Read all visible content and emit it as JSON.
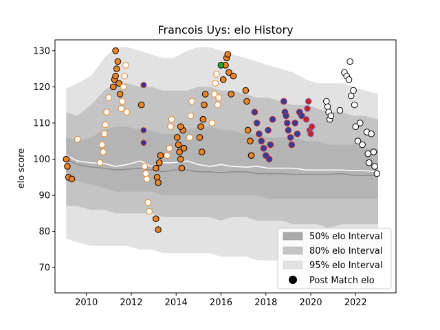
{
  "chart_data": {
    "type": "scatter",
    "title": "Francois Uys: elo History",
    "xlabel": "",
    "ylabel": "elo score",
    "xlim": [
      2008.6,
      2023.8
    ],
    "ylim": [
      63,
      133
    ],
    "xticks": [
      2010,
      2012,
      2014,
      2016,
      2018,
      2020,
      2022
    ],
    "yticks": [
      70,
      80,
      90,
      100,
      110,
      120,
      130
    ],
    "grid": false,
    "legend": {
      "placement": "bottom-right",
      "entries": [
        {
          "label": "50% elo Interval",
          "color": "#a9a9a9"
        },
        {
          "label": "80% elo Interval",
          "color": "#c4c4c4"
        },
        {
          "label": "95% elo Interval",
          "color": "#e2e2e2"
        },
        {
          "label": "Post Match elo",
          "color": "#000000"
        }
      ]
    },
    "bands": {
      "x": [
        2009.1,
        2009.6,
        2010.2,
        2010.8,
        2011.3,
        2011.8,
        2012.4,
        2012.9,
        2013.4,
        2013.9,
        2014.5,
        2015.0,
        2015.5,
        2016.0,
        2016.5,
        2017.1,
        2017.6,
        2018.1,
        2018.7,
        2019.2,
        2019.8,
        2020.3,
        2020.8,
        2021.4,
        2021.9,
        2022.4,
        2023.0
      ],
      "p95_upper": [
        119.5,
        121,
        123,
        128,
        131,
        131,
        130,
        129,
        128,
        128,
        130,
        131,
        131,
        130,
        129,
        128,
        127,
        126,
        125,
        124,
        122,
        121,
        121,
        121,
        120,
        119,
        118
      ],
      "p80_upper": [
        113,
        112,
        115,
        119,
        121,
        121,
        120,
        120,
        119,
        119,
        119,
        120,
        120,
        119,
        119,
        118,
        117,
        117,
        116,
        115,
        115,
        114,
        113,
        113,
        112,
        112,
        111
      ],
      "p50_upper": [
        106,
        105,
        106,
        108,
        109,
        109,
        108,
        108,
        107,
        107,
        108,
        109,
        109,
        108,
        108,
        107,
        107,
        106,
        106,
        106,
        105,
        105,
        104,
        104,
        104,
        103,
        103
      ],
      "p50_lower": [
        94,
        94,
        93,
        92,
        91,
        91,
        91,
        91,
        90,
        90,
        90,
        90,
        90,
        90,
        90,
        90,
        90,
        89,
        89,
        89,
        89,
        89,
        89,
        89,
        89,
        89,
        89
      ],
      "p80_lower": [
        87,
        87,
        86,
        86,
        85,
        85,
        85,
        85,
        84,
        84,
        84,
        84,
        84,
        83,
        84,
        84,
        83,
        83,
        83,
        82,
        82,
        82,
        81,
        82,
        82,
        82,
        82
      ],
      "p95_lower": [
        78,
        77,
        76,
        76,
        76,
        76,
        75,
        75,
        74,
        74,
        74,
        74,
        74,
        73,
        73,
        73,
        72,
        72,
        72,
        71,
        71,
        70,
        70,
        71,
        71,
        71,
        71
      ]
    },
    "mean_lines": {
      "x": [
        2009.1,
        2009.6,
        2010.2,
        2010.8,
        2011.3,
        2011.8,
        2012.4,
        2012.9,
        2013.4,
        2013.9,
        2014.5,
        2015.0,
        2015.5,
        2016.0,
        2016.5,
        2017.1,
        2017.6,
        2018.1,
        2018.7,
        2019.2,
        2019.8,
        2020.3,
        2020.8,
        2021.4,
        2021.9,
        2022.4,
        2023.0
      ],
      "white": [
        101,
        99.5,
        99,
        98.8,
        98,
        98.5,
        99.5,
        98,
        99,
        99,
        99.5,
        98.5,
        98,
        98.5,
        98,
        97.8,
        98,
        97.5,
        97.5,
        97.5,
        97,
        97,
        97,
        97,
        96.8,
        96.8,
        96.5
      ],
      "gray": [
        100,
        98.5,
        97.8,
        97.5,
        97,
        97.2,
        97.5,
        97,
        96.5,
        97,
        97,
        96.5,
        96.5,
        96.2,
        96.5,
        96.5,
        96,
        96,
        96,
        95.8,
        95.8,
        95.8,
        95.8,
        96,
        95.5,
        95.5,
        95.5
      ]
    },
    "series": [
      {
        "fill": "#ee8422",
        "stroke": "#000000",
        "x": [
          2009.1,
          2009.15,
          2009.2,
          2009.35,
          2011.2,
          2011.25,
          2011.3,
          2011.35,
          2011.4,
          2011.45,
          2011.5,
          2011.3,
          2012.45,
          2013.1,
          2013.15,
          2013.2,
          2013.25,
          2013.3,
          2013.1,
          2013.2,
          2014.05,
          2014.1,
          2014.15,
          2014.2,
          2014.3,
          2014.35,
          2014.2,
          2014.25,
          2015.05,
          2015.1,
          2015.2,
          2015.25,
          2015.3,
          2015.15,
          2016.1,
          2016.2,
          2016.25,
          2016.3,
          2016.35,
          2016.45,
          2016.55,
          2017.1,
          2017.15,
          2017.2,
          2017.3,
          2017.35
        ],
        "y": [
          100,
          98,
          95,
          94.5,
          120,
          122,
          123,
          125,
          127,
          121,
          118,
          130,
          115,
          97.5,
          95,
          93.5,
          99,
          101,
          83.5,
          80.5,
          106,
          104,
          102,
          100,
          108,
          103,
          109,
          97.5,
          106,
          109,
          111,
          115,
          118,
          102,
          122,
          126,
          128,
          129,
          124,
          118,
          123,
          119,
          116,
          108,
          105,
          101
        ]
      },
      {
        "fill": "#ffffff",
        "stroke": "#ee8422",
        "x": [
          2009.6,
          2010.6,
          2010.7,
          2010.75,
          2010.8,
          2010.85,
          2010.9,
          2011.0,
          2011.55,
          2011.6,
          2011.65,
          2011.7,
          2011.75,
          2011.8,
          2012.6,
          2012.65,
          2012.7,
          2012.75,
          2012.8,
          2013.6,
          2013.7,
          2013.75,
          2013.8,
          2014.6,
          2014.65,
          2014.7,
          2015.6,
          2015.7,
          2015.75,
          2015.8,
          2015.85,
          2015.9
        ],
        "y": [
          105.5,
          99,
          104,
          102,
          107,
          109.5,
          113,
          117,
          114,
          116,
          120,
          123,
          126,
          113,
          98,
          96,
          94.5,
          88,
          85.5,
          101,
          103,
          109,
          111,
          106,
          112,
          116,
          110,
          118,
          121,
          123.5,
          115,
          117
        ]
      },
      {
        "fill": "#3a2da8",
        "stroke": "#ee8422",
        "x": [
          2012.55,
          2012.55,
          2012.55
        ],
        "y": [
          120.5,
          108,
          104.5
        ]
      },
      {
        "fill": "#2f3fa0",
        "stroke": "#cc2222",
        "x": [
          2017.5,
          2017.6,
          2017.7,
          2017.8,
          2017.9,
          2018.0,
          2018.1,
          2018.15,
          2018.2,
          2018.3,
          2018.8,
          2018.85,
          2018.9,
          2018.95,
          2019.0,
          2019.1,
          2019.15,
          2019.3,
          2019.4,
          2019.5,
          2019.6
        ],
        "y": [
          113,
          110,
          107,
          105,
          103,
          101,
          108,
          100,
          104,
          111,
          116,
          113,
          112,
          110,
          108,
          106,
          104,
          110,
          107,
          113,
          112
        ]
      },
      {
        "fill": "#cc1f1f",
        "stroke": "#7777cc",
        "x": [
          2019.8,
          2019.85,
          2019.9,
          2019.95,
          2020.0,
          2020.05
        ],
        "y": [
          111,
          114,
          116,
          108,
          107,
          109
        ]
      },
      {
        "fill": "#ffffff",
        "stroke": "#000000",
        "x": [
          2020.7,
          2020.75,
          2020.8,
          2020.85,
          2020.9,
          2021.3,
          2021.5,
          2021.6,
          2021.7,
          2021.75,
          2021.8,
          2021.9,
          2021.95,
          2022.0,
          2022.1,
          2022.2,
          2022.3,
          2022.5,
          2022.55,
          2022.6,
          2022.7,
          2022.8,
          2022.85,
          2022.95
        ],
        "y": [
          116,
          114.5,
          113,
          111,
          112,
          113.5,
          124,
          123,
          122,
          127,
          117.5,
          119,
          115,
          109,
          105,
          110,
          104,
          107.5,
          101.5,
          99,
          107,
          102,
          98,
          96
        ]
      },
      {
        "fill": "#22aa22",
        "stroke": "#000000",
        "x": [
          2016.0
        ],
        "y": [
          126
        ]
      }
    ]
  }
}
